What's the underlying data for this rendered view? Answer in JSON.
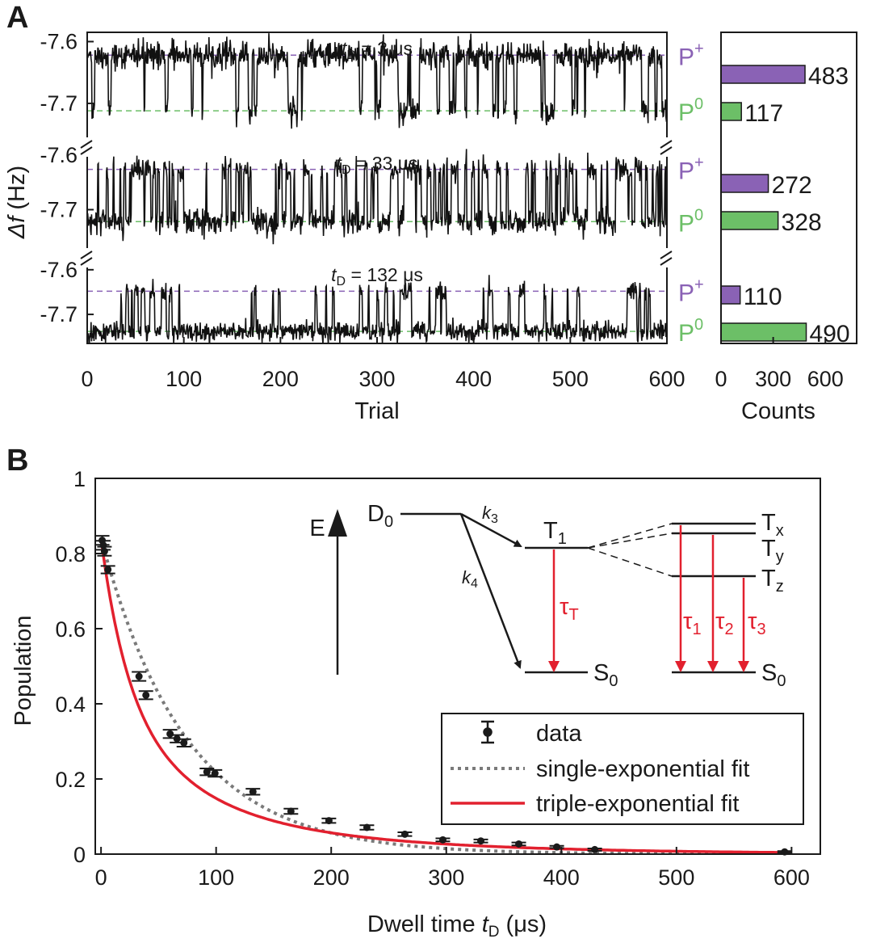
{
  "colors": {
    "trace": "#111111",
    "p_plus": "#8a62b5",
    "p_zero": "#6cbf67",
    "fit_triple": "#e2202e",
    "fit_single": "#7a7a7a",
    "arrow_red": "#e2202e"
  },
  "chart_data": [
    {
      "panel": "A",
      "type": "line",
      "title_panel_letter": "A",
      "xlabel": "Trial",
      "ylabel_italic": "Δf",
      "ylabel_unit": " (Hz)",
      "xlim": [
        0,
        600
      ],
      "xticks": [
        0,
        100,
        200,
        300,
        400,
        500,
        600
      ],
      "subpanels": [
        {
          "label_italic": "t",
          "label_sub": "D",
          "label_rest": " = 3 μs",
          "ylim": [
            -7.755,
            -7.585
          ],
          "yticks": [
            -7.6,
            -7.7
          ],
          "ytick_labels": [
            "-7.6",
            "-7.7"
          ],
          "p_plus_level": -7.622,
          "p_zero_level": -7.712,
          "p_plus_label": "P",
          "p_plus_sup": "+",
          "p_zero_label": "P",
          "p_zero_sup": "0",
          "fraction_p_plus": 0.805,
          "counts": {
            "p_plus": 483,
            "p_zero": 117
          }
        },
        {
          "label_italic": "t",
          "label_sub": "D",
          "label_rest": " = 33 μs",
          "ylim": [
            -7.775,
            -7.585
          ],
          "yticks": [
            -7.6,
            -7.7
          ],
          "ytick_labels": [
            "-7.6",
            "-7.7"
          ],
          "p_plus_level": -7.626,
          "p_zero_level": -7.722,
          "p_plus_label": "P",
          "p_plus_sup": "+",
          "p_zero_label": "P",
          "p_zero_sup": "0",
          "fraction_p_plus": 0.453,
          "counts": {
            "p_plus": 272,
            "p_zero": 328
          }
        },
        {
          "label_italic": "t",
          "label_sub": "D",
          "label_rest": " = 132 μs",
          "ylim": [
            -7.765,
            -7.575
          ],
          "yticks": [
            -7.6,
            -7.7
          ],
          "ytick_labels": [
            "-7.6",
            "-7.7"
          ],
          "p_plus_level": -7.648,
          "p_zero_level": -7.738,
          "p_plus_label": "P",
          "p_plus_sup": "+",
          "p_zero_label": "P",
          "p_zero_sup": "0",
          "fraction_p_plus": 0.183,
          "counts": {
            "p_plus": 110,
            "p_zero": 490
          }
        }
      ]
    },
    {
      "panel": "A-histogram",
      "type": "bar",
      "orientation": "horizontal",
      "xlabel": "Counts",
      "xlim": [
        0,
        780
      ],
      "xticks": [
        0,
        300,
        600
      ],
      "bars": [
        {
          "state": "P+",
          "value": 483,
          "label": "483"
        },
        {
          "state": "P0",
          "value": 117,
          "label": "117"
        },
        {
          "state": "P+",
          "value": 272,
          "label": "272"
        },
        {
          "state": "P0",
          "value": 328,
          "label": "328"
        },
        {
          "state": "P+",
          "value": 110,
          "label": "110"
        },
        {
          "state": "P0",
          "value": 490,
          "label": "490"
        }
      ]
    },
    {
      "panel": "B",
      "type": "scatter",
      "title_panel_letter": "B",
      "xlabel_pre": "Dwell time ",
      "xlabel_italic": "t",
      "xlabel_sub": "D",
      "xlabel_post": " (μs)",
      "ylabel": "Population",
      "xlim": [
        -5,
        625
      ],
      "ylim": [
        0,
        1
      ],
      "xticks": [
        0,
        100,
        200,
        300,
        400,
        500,
        600
      ],
      "yticks": [
        0,
        0.2,
        0.4,
        0.6,
        0.8,
        1
      ],
      "ytick_labels": [
        "0",
        "0.2",
        "0.4",
        "0.6",
        "0.8",
        "1"
      ],
      "series": [
        {
          "name": "data",
          "points": [
            [
              1,
              0.835,
              0.012
            ],
            [
              2,
              0.822,
              0.012
            ],
            [
              3,
              0.806,
              0.012
            ],
            [
              6,
              0.757,
              0.01
            ],
            [
              33,
              0.473,
              0.012
            ],
            [
              39,
              0.423,
              0.011
            ],
            [
              60,
              0.32,
              0.011
            ],
            [
              66,
              0.307,
              0.01
            ],
            [
              72,
              0.296,
              0.01
            ],
            [
              92,
              0.219,
              0.009
            ],
            [
              99,
              0.215,
              0.009
            ],
            [
              132,
              0.166,
              0.008
            ],
            [
              165,
              0.114,
              0.007
            ],
            [
              198,
              0.089,
              0.006
            ],
            [
              231,
              0.071,
              0.006
            ],
            [
              264,
              0.053,
              0.005
            ],
            [
              297,
              0.038,
              0.004
            ],
            [
              330,
              0.035,
              0.004
            ],
            [
              363,
              0.027,
              0.004
            ],
            [
              396,
              0.019,
              0.003
            ],
            [
              429,
              0.012,
              0.003
            ],
            [
              594,
              0.006,
              0.002
            ]
          ]
        },
        {
          "name": "single-exponential fit",
          "model": "exp",
          "a": 0.84,
          "tau": 74
        },
        {
          "name": "triple-exponential fit",
          "model": "triexp",
          "terms": [
            [
              0.38,
              22
            ],
            [
              0.33,
              65
            ],
            [
              0.13,
              175
            ]
          ]
        }
      ],
      "legend": {
        "position": "lower-right",
        "items": [
          "data",
          "single-exponential fit",
          "triple-exponential fit"
        ]
      }
    }
  ],
  "diagram": {
    "energy_label": "E",
    "d0_base": "D",
    "d0_sub": "0",
    "t1_base": "T",
    "t1_sub": "1",
    "s0_base": "S",
    "s0_sub": "0",
    "k3_base": "k",
    "k3_sub": "3",
    "k4_base": "k",
    "k4_sub": "4",
    "tauT_base": "τ",
    "tauT_sub": "T",
    "tx_base": "T",
    "tx_sub": "x",
    "ty_base": "T",
    "ty_sub": "y",
    "tz_base": "T",
    "tz_sub": "z",
    "tau1_base": "τ",
    "tau1_sub": "1",
    "tau2_base": "τ",
    "tau2_sub": "2",
    "tau3_base": "τ",
    "tau3_sub": "3"
  }
}
